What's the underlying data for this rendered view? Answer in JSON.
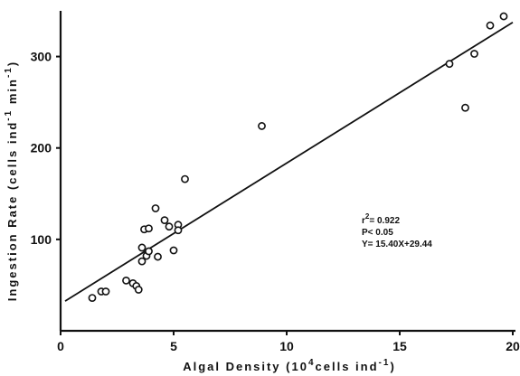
{
  "chart_data": {
    "type": "scatter",
    "xlabel_parts": [
      "Algal Density (10",
      "4",
      "cells ind",
      "-1",
      ")"
    ],
    "ylabel_parts": [
      "Ingestion Rate (cells ind",
      "-1",
      " min",
      "-1",
      ")"
    ],
    "xlim": [
      0,
      20
    ],
    "ylim": [
      0,
      350
    ],
    "x_ticks": [
      0,
      5,
      10,
      15,
      20
    ],
    "y_ticks": [
      100,
      200,
      300
    ],
    "grid": false,
    "points": [
      {
        "x": 1.4,
        "y": 36
      },
      {
        "x": 1.8,
        "y": 43
      },
      {
        "x": 2.0,
        "y": 43
      },
      {
        "x": 2.9,
        "y": 55
      },
      {
        "x": 3.2,
        "y": 52
      },
      {
        "x": 3.35,
        "y": 49
      },
      {
        "x": 3.45,
        "y": 45
      },
      {
        "x": 3.6,
        "y": 76
      },
      {
        "x": 3.6,
        "y": 91
      },
      {
        "x": 3.8,
        "y": 82
      },
      {
        "x": 3.9,
        "y": 87
      },
      {
        "x": 3.7,
        "y": 111
      },
      {
        "x": 3.9,
        "y": 112
      },
      {
        "x": 4.3,
        "y": 81
      },
      {
        "x": 4.2,
        "y": 134
      },
      {
        "x": 4.6,
        "y": 121
      },
      {
        "x": 4.8,
        "y": 114
      },
      {
        "x": 5.0,
        "y": 88
      },
      {
        "x": 5.2,
        "y": 116
      },
      {
        "x": 5.2,
        "y": 110
      },
      {
        "x": 5.5,
        "y": 166
      },
      {
        "x": 8.9,
        "y": 224
      },
      {
        "x": 17.2,
        "y": 292
      },
      {
        "x": 17.9,
        "y": 244
      },
      {
        "x": 18.3,
        "y": 303
      },
      {
        "x": 19.0,
        "y": 334
      },
      {
        "x": 19.6,
        "y": 344
      }
    ],
    "fit_line": {
      "slope": 15.4,
      "intercept": 29.44,
      "x_range": [
        0.2,
        20
      ]
    },
    "annotation": {
      "r2_base": "r",
      "r2_sup": "2",
      "r2_value": "= 0.922",
      "p": "P< 0.05",
      "eq": "Y= 15.40X+29.44"
    }
  }
}
